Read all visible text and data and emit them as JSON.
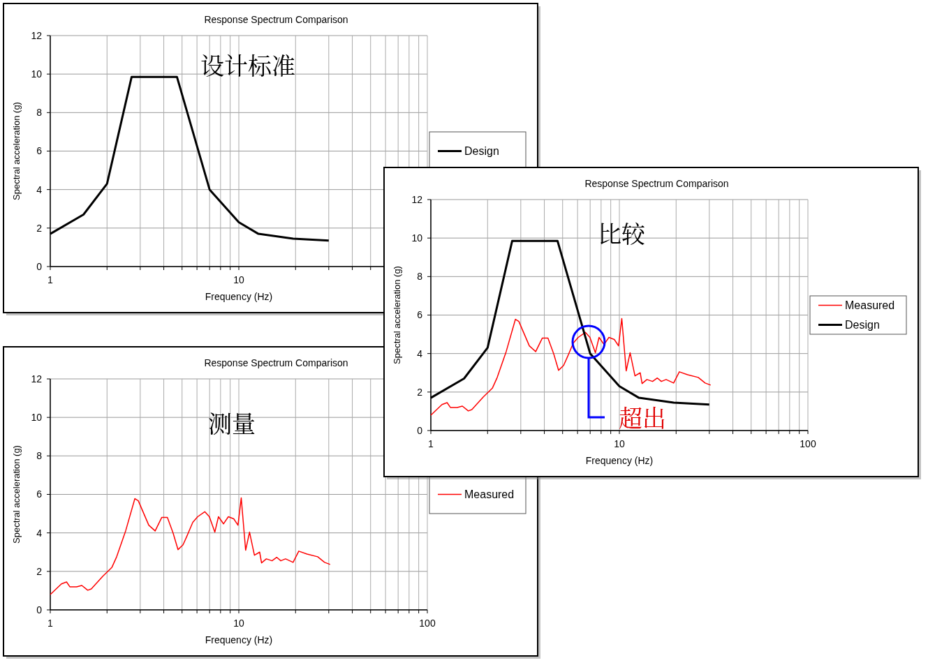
{
  "chart_data": [
    {
      "type": "line",
      "title": "Response Spectrum Comparison",
      "xlabel": "Frequency (Hz)",
      "ylabel": "Spectral acceleration (g)",
      "log": "x",
      "xlim": [
        1,
        100
      ],
      "xticks": [
        1,
        {
          "value": 2,
          "label": null
        },
        {
          "value": 3,
          "label": null
        },
        {
          "value": 4,
          "label": null
        },
        {
          "value": 5,
          "label": null
        },
        {
          "value": 6,
          "label": null
        },
        {
          "value": 7,
          "label": null
        },
        {
          "value": 8,
          "label": null
        },
        {
          "value": 9,
          "label": null
        },
        10,
        {
          "value": 20,
          "label": null
        },
        {
          "value": 30,
          "label": null
        },
        {
          "value": 40,
          "label": null
        },
        {
          "value": 50,
          "label": null
        },
        {
          "value": 60,
          "label": null
        },
        {
          "value": 70,
          "label": null
        },
        {
          "value": 80,
          "label": null
        },
        {
          "value": 90,
          "label": null
        },
        {
          "value": 100,
          "label": null
        }
      ],
      "ylim": [
        0,
        12
      ],
      "yticks": [
        0,
        2,
        4,
        6,
        8,
        10,
        12
      ],
      "grid": true,
      "legend": "right",
      "marker": "none",
      "annotations": [
        "设计标准"
      ],
      "series": [
        {
          "name": "Design",
          "color": "#000000",
          "x": [
            1,
            1.5,
            2,
            2.7,
            4.7,
            7,
            10,
            12.7,
            19.4,
            30
          ],
          "values": [
            1.7,
            2.7,
            4.3,
            9.85,
            9.85,
            4.0,
            2.3,
            1.7,
            1.45,
            1.35
          ]
        }
      ]
    },
    {
      "type": "line",
      "title": "Response Spectrum Comparison",
      "xlabel": "Frequency (Hz)",
      "ylabel": "Spectral acceleration (g)",
      "log": "x",
      "xlim": [
        1,
        100
      ],
      "xticks": [
        1,
        {
          "value": 2,
          "label": null
        },
        {
          "value": 3,
          "label": null
        },
        {
          "value": 4,
          "label": null
        },
        {
          "value": 5,
          "label": null
        },
        {
          "value": 6,
          "label": null
        },
        {
          "value": 7,
          "label": null
        },
        {
          "value": 8,
          "label": null
        },
        {
          "value": 9,
          "label": null
        },
        10,
        {
          "value": 20,
          "label": null
        },
        {
          "value": 30,
          "label": null
        },
        {
          "value": 40,
          "label": null
        },
        {
          "value": 50,
          "label": null
        },
        {
          "value": 60,
          "label": null
        },
        {
          "value": 70,
          "label": null
        },
        {
          "value": 80,
          "label": null
        },
        {
          "value": 90,
          "label": null
        },
        100
      ],
      "ylim": [
        0,
        12
      ],
      "yticks": [
        0,
        2,
        4,
        6,
        8,
        10,
        12
      ],
      "grid": true,
      "legend": "right",
      "marker": "none",
      "annotations": [
        "测量"
      ],
      "series": [
        {
          "name": "Measured",
          "color": "#ff0000",
          "x": [
            1,
            1.146,
            1.22,
            1.27,
            1.38,
            1.47,
            1.58,
            1.65,
            1.9,
            2.12,
            2.25,
            2.51,
            2.81,
            2.93,
            3.33,
            3.6,
            3.9,
            4.18,
            4.48,
            4.76,
            5.06,
            5.3,
            5.7,
            6.05,
            6.6,
            6.98,
            7.46,
            7.8,
            8.3,
            8.8,
            9.4,
            9.9,
            10.3,
            10.87,
            11.4,
            12.1,
            12.9,
            13.2,
            14.0,
            15.0,
            15.9,
            16.7,
            17.7,
            19.4,
            20.8,
            23.0,
            26.2,
            28.5,
            30.5
          ],
          "values": [
            0.8,
            1.35,
            1.45,
            1.2,
            1.2,
            1.27,
            1.02,
            1.09,
            1.75,
            2.2,
            2.76,
            4.1,
            5.78,
            5.67,
            4.4,
            4.1,
            4.8,
            4.8,
            4.0,
            3.13,
            3.38,
            3.82,
            4.55,
            4.84,
            5.1,
            4.84,
            4.04,
            4.84,
            4.47,
            4.84,
            4.73,
            4.4,
            5.82,
            3.1,
            4.04,
            2.84,
            3.0,
            2.44,
            2.65,
            2.55,
            2.73,
            2.55,
            2.65,
            2.47,
            3.05,
            2.9,
            2.76,
            2.47,
            2.36
          ]
        }
      ]
    },
    {
      "type": "line",
      "title": "Response Spectrum Comparison",
      "xlabel": "Frequency (Hz)",
      "ylabel": "Spectral acceleration (g)",
      "log": "x",
      "xlim": [
        1,
        100
      ],
      "xticks": [
        1,
        {
          "value": 2,
          "label": null
        },
        {
          "value": 3,
          "label": null
        },
        {
          "value": 4,
          "label": null
        },
        {
          "value": 5,
          "label": null
        },
        {
          "value": 6,
          "label": null
        },
        {
          "value": 7,
          "label": null
        },
        {
          "value": 8,
          "label": null
        },
        {
          "value": 9,
          "label": null
        },
        10,
        {
          "value": 20,
          "label": null
        },
        {
          "value": 30,
          "label": null
        },
        {
          "value": 40,
          "label": null
        },
        {
          "value": 50,
          "label": null
        },
        {
          "value": 60,
          "label": null
        },
        {
          "value": 70,
          "label": null
        },
        {
          "value": 80,
          "label": null
        },
        {
          "value": 90,
          "label": null
        },
        100
      ],
      "ylim": [
        0,
        12
      ],
      "yticks": [
        0,
        2,
        4,
        6,
        8,
        10,
        12
      ],
      "grid": true,
      "legend": "right",
      "marker": "none",
      "annotations": [
        "比较",
        "超出"
      ],
      "series": [
        {
          "name": "Measured",
          "color": "#ff0000",
          "x": [
            1,
            1.146,
            1.22,
            1.27,
            1.38,
            1.47,
            1.58,
            1.65,
            1.9,
            2.12,
            2.25,
            2.51,
            2.81,
            2.93,
            3.33,
            3.6,
            3.9,
            4.18,
            4.48,
            4.76,
            5.06,
            5.3,
            5.7,
            6.05,
            6.6,
            6.98,
            7.46,
            7.8,
            8.3,
            8.8,
            9.4,
            9.9,
            10.3,
            10.87,
            11.4,
            12.1,
            12.9,
            13.2,
            14.0,
            15.0,
            15.9,
            16.7,
            17.7,
            19.4,
            20.8,
            23.0,
            26.2,
            28.5,
            30.5
          ],
          "values": [
            0.8,
            1.35,
            1.45,
            1.2,
            1.2,
            1.27,
            1.02,
            1.09,
            1.75,
            2.2,
            2.76,
            4.1,
            5.78,
            5.67,
            4.4,
            4.1,
            4.8,
            4.8,
            4.0,
            3.13,
            3.38,
            3.82,
            4.55,
            4.84,
            5.1,
            4.84,
            4.04,
            4.84,
            4.47,
            4.84,
            4.73,
            4.4,
            5.82,
            3.1,
            4.04,
            2.84,
            3.0,
            2.44,
            2.65,
            2.55,
            2.73,
            2.55,
            2.65,
            2.47,
            3.05,
            2.9,
            2.76,
            2.47,
            2.36
          ]
        },
        {
          "name": "Design",
          "color": "#000000",
          "x": [
            1,
            1.5,
            2,
            2.7,
            4.7,
            7,
            10,
            12.7,
            19.4,
            30
          ],
          "values": [
            1.7,
            2.7,
            4.3,
            9.85,
            9.85,
            4.0,
            2.3,
            1.7,
            1.45,
            1.35
          ]
        }
      ]
    }
  ]
}
